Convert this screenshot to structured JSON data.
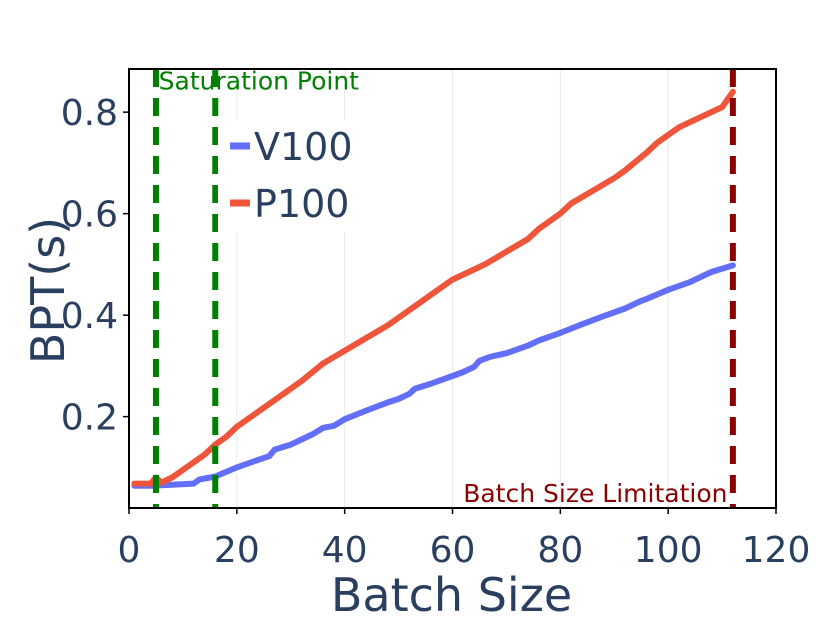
{
  "chart_data": {
    "type": "line",
    "title": "",
    "xlabel": "Batch Size",
    "ylabel": "BPT(s)",
    "xlim": [
      0,
      120
    ],
    "ylim": [
      0.02,
      0.885
    ],
    "xticks": [
      0,
      20,
      40,
      60,
      80,
      100,
      120
    ],
    "xtick_labels": [
      "0",
      "20",
      "40",
      "60",
      "80",
      "100",
      "120"
    ],
    "yticks": [
      0.2,
      0.4,
      0.6,
      0.8
    ],
    "ytick_labels": [
      "0.2",
      "0.4",
      "0.6",
      "0.8"
    ],
    "grid": "vertical",
    "legend_position": "upper-left",
    "series": [
      {
        "name": "V100",
        "color": "#636efa",
        "x": [
          1,
          4,
          8,
          12,
          13,
          16,
          20,
          24,
          26,
          27,
          30,
          32,
          34,
          36,
          38,
          40,
          44,
          46,
          48,
          50,
          52,
          53,
          56,
          60,
          62,
          64,
          65,
          67,
          70,
          74,
          76,
          80,
          84,
          88,
          92,
          95,
          96,
          100,
          104,
          108,
          112
        ],
        "y": [
          0.064,
          0.064,
          0.066,
          0.068,
          0.076,
          0.082,
          0.1,
          0.115,
          0.122,
          0.135,
          0.145,
          0.155,
          0.165,
          0.178,
          0.182,
          0.195,
          0.212,
          0.22,
          0.228,
          0.235,
          0.245,
          0.255,
          0.265,
          0.28,
          0.288,
          0.298,
          0.31,
          0.318,
          0.325,
          0.34,
          0.35,
          0.365,
          0.382,
          0.398,
          0.413,
          0.428,
          0.432,
          0.45,
          0.465,
          0.485,
          0.498
        ]
      },
      {
        "name": "P100",
        "color": "#ef553b",
        "x": [
          1,
          4,
          5,
          6,
          8,
          10,
          12,
          14,
          16,
          18,
          20,
          24,
          28,
          32,
          36,
          40,
          44,
          48,
          52,
          54,
          56,
          60,
          62,
          64,
          66,
          70,
          74,
          76,
          80,
          82,
          86,
          90,
          92,
          96,
          98,
          102,
          106,
          110,
          111,
          112
        ],
        "y": [
          0.068,
          0.068,
          0.08,
          0.07,
          0.08,
          0.095,
          0.11,
          0.125,
          0.145,
          0.16,
          0.18,
          0.21,
          0.24,
          0.27,
          0.305,
          0.33,
          0.355,
          0.38,
          0.41,
          0.425,
          0.44,
          0.47,
          0.48,
          0.49,
          0.5,
          0.525,
          0.55,
          0.57,
          0.6,
          0.62,
          0.645,
          0.67,
          0.685,
          0.72,
          0.74,
          0.77,
          0.79,
          0.81,
          0.825,
          0.84
        ]
      }
    ],
    "vlines": [
      {
        "x": 5,
        "color": "#008000",
        "style": "dashed"
      },
      {
        "x": 16,
        "color": "#008000",
        "style": "dashed"
      },
      {
        "x": 112,
        "color": "#8b0000",
        "style": "dashed"
      }
    ],
    "annotations": [
      {
        "text": "Saturation Point",
        "x": 5.5,
        "y": 0.845,
        "color": "#008000",
        "anchor": "start"
      },
      {
        "text": "Batch Size Limitation",
        "x": 111,
        "y": 0.032,
        "color": "#8b0000",
        "anchor": "end"
      }
    ]
  }
}
